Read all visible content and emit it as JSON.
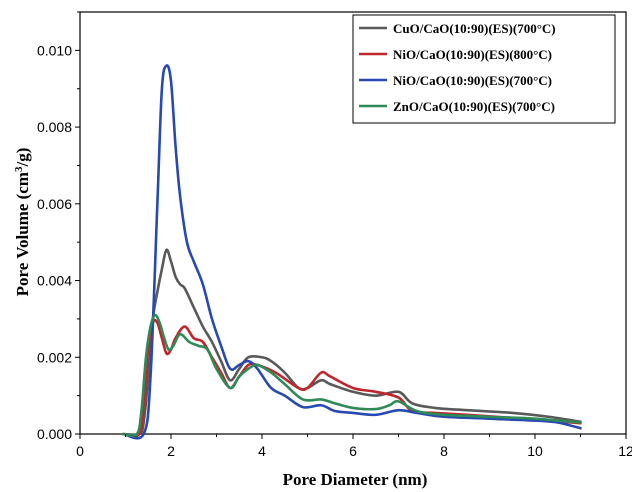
{
  "chart_data": {
    "type": "line",
    "xlabel": "Pore Diameter (nm)",
    "ylabel_parts": [
      "Pore Volume (cm",
      "3",
      "/g)"
    ],
    "xlim": [
      0,
      12
    ],
    "ylim": [
      0,
      0.011
    ],
    "x_ticks": [
      0,
      2,
      4,
      6,
      8,
      10,
      12
    ],
    "x_tick_labels": [
      "0",
      "2",
      "4",
      "6",
      "8",
      "10",
      "12"
    ],
    "y_ticks": [
      0,
      0.002,
      0.004,
      0.006,
      0.008,
      0.01
    ],
    "y_tick_labels": [
      "0.000",
      "0.002",
      "0.004",
      "0.006",
      "0.008",
      "0.010"
    ],
    "grid": false,
    "legend_position": "top-right",
    "series": [
      {
        "name": "CuO/CaO(10:90)(ES)(700°C)",
        "color": "#595959",
        "points": [
          [
            0.95,
            0
          ],
          [
            1.3,
            0
          ],
          [
            1.4,
            0.0003
          ],
          [
            1.5,
            0.0015
          ],
          [
            1.6,
            0.003
          ],
          [
            1.7,
            0.0037
          ],
          [
            1.8,
            0.0043
          ],
          [
            1.9,
            0.0048
          ],
          [
            2.0,
            0.0045
          ],
          [
            2.1,
            0.0041
          ],
          [
            2.2,
            0.0039
          ],
          [
            2.3,
            0.0038
          ],
          [
            2.5,
            0.0033
          ],
          [
            2.7,
            0.0028
          ],
          [
            2.9,
            0.0024
          ],
          [
            3.1,
            0.0019
          ],
          [
            3.3,
            0.0014
          ],
          [
            3.5,
            0.0017
          ],
          [
            3.7,
            0.002
          ],
          [
            4.0,
            0.002
          ],
          [
            4.2,
            0.0019
          ],
          [
            4.5,
            0.0016
          ],
          [
            4.8,
            0.0012
          ],
          [
            5.0,
            0.0012
          ],
          [
            5.3,
            0.0014
          ],
          [
            5.5,
            0.0013
          ],
          [
            6.0,
            0.0011
          ],
          [
            6.5,
            0.001
          ],
          [
            7.0,
            0.0011
          ],
          [
            7.3,
            0.0008
          ],
          [
            7.8,
            0.00068
          ],
          [
            8.5,
            0.00062
          ],
          [
            9.5,
            0.00055
          ],
          [
            10.3,
            0.00045
          ],
          [
            11.0,
            0.00032
          ]
        ]
      },
      {
        "name": "NiO/CaO(10:90)(ES)(800°C)",
        "color": "#c0252a",
        "points": [
          [
            0.95,
            0
          ],
          [
            1.3,
            0
          ],
          [
            1.4,
            0.0008
          ],
          [
            1.5,
            0.0022
          ],
          [
            1.6,
            0.0029
          ],
          [
            1.7,
            0.0029
          ],
          [
            1.8,
            0.0025
          ],
          [
            1.9,
            0.0021
          ],
          [
            2.0,
            0.0022
          ],
          [
            2.1,
            0.0025
          ],
          [
            2.3,
            0.0028
          ],
          [
            2.5,
            0.0025
          ],
          [
            2.7,
            0.0024
          ],
          [
            2.9,
            0.002
          ],
          [
            3.1,
            0.0016
          ],
          [
            3.3,
            0.0012
          ],
          [
            3.5,
            0.0015
          ],
          [
            3.7,
            0.0018
          ],
          [
            3.9,
            0.0018
          ],
          [
            4.3,
            0.0016
          ],
          [
            4.8,
            0.0012
          ],
          [
            5.0,
            0.0012
          ],
          [
            5.3,
            0.0016
          ],
          [
            5.5,
            0.0015
          ],
          [
            6.0,
            0.0012
          ],
          [
            6.5,
            0.0011
          ],
          [
            7.0,
            0.00095
          ],
          [
            7.3,
            0.0006
          ],
          [
            7.8,
            0.00055
          ],
          [
            8.5,
            0.0005
          ],
          [
            9.5,
            0.00042
          ],
          [
            10.3,
            0.00035
          ],
          [
            11.0,
            0.00028
          ]
        ]
      },
      {
        "name": "NiO/CaO(10:90)(ES)(700°C)",
        "color": "#2749b0",
        "points": [
          [
            0.95,
            0
          ],
          [
            1.4,
            0
          ],
          [
            1.55,
            0.0015
          ],
          [
            1.7,
            0.006
          ],
          [
            1.8,
            0.009
          ],
          [
            1.9,
            0.0096
          ],
          [
            2.0,
            0.0092
          ],
          [
            2.1,
            0.0075
          ],
          [
            2.2,
            0.0062
          ],
          [
            2.35,
            0.005
          ],
          [
            2.5,
            0.0045
          ],
          [
            2.7,
            0.0039
          ],
          [
            2.9,
            0.003
          ],
          [
            3.1,
            0.0023
          ],
          [
            3.3,
            0.0017
          ],
          [
            3.5,
            0.0018
          ],
          [
            3.7,
            0.0019
          ],
          [
            3.9,
            0.0017
          ],
          [
            4.2,
            0.0012
          ],
          [
            4.5,
            0.001
          ],
          [
            4.9,
            0.0007
          ],
          [
            5.3,
            0.00075
          ],
          [
            5.6,
            0.0006
          ],
          [
            6.0,
            0.00055
          ],
          [
            6.5,
            0.0005
          ],
          [
            7.0,
            0.00062
          ],
          [
            7.4,
            0.00055
          ],
          [
            8.0,
            0.00045
          ],
          [
            9.0,
            0.0004
          ],
          [
            10.0,
            0.00035
          ],
          [
            10.5,
            0.0003
          ],
          [
            11.0,
            0.00015
          ]
        ]
      },
      {
        "name": "ZnO/CaO(10:90)(ES)(700°C)",
        "color": "#2e8b57",
        "points": [
          [
            0.95,
            0
          ],
          [
            1.25,
            0
          ],
          [
            1.35,
            0.0006
          ],
          [
            1.45,
            0.002
          ],
          [
            1.55,
            0.0028
          ],
          [
            1.65,
            0.0031
          ],
          [
            1.75,
            0.0029
          ],
          [
            1.85,
            0.0025
          ],
          [
            1.95,
            0.0022
          ],
          [
            2.05,
            0.0023
          ],
          [
            2.2,
            0.0026
          ],
          [
            2.4,
            0.0024
          ],
          [
            2.6,
            0.0023
          ],
          [
            2.8,
            0.0022
          ],
          [
            3.0,
            0.0017
          ],
          [
            3.3,
            0.0012
          ],
          [
            3.5,
            0.0015
          ],
          [
            3.7,
            0.0017
          ],
          [
            3.9,
            0.0018
          ],
          [
            4.2,
            0.0016
          ],
          [
            4.5,
            0.0013
          ],
          [
            4.9,
            0.0009
          ],
          [
            5.3,
            0.0009
          ],
          [
            5.6,
            0.0008
          ],
          [
            6.0,
            0.00068
          ],
          [
            6.5,
            0.00065
          ],
          [
            6.8,
            0.00075
          ],
          [
            7.0,
            0.00085
          ],
          [
            7.4,
            0.0006
          ],
          [
            8.0,
            0.0005
          ],
          [
            9.0,
            0.00045
          ],
          [
            10.0,
            0.0004
          ],
          [
            10.5,
            0.00035
          ],
          [
            11.0,
            0.0003
          ]
        ]
      }
    ]
  }
}
